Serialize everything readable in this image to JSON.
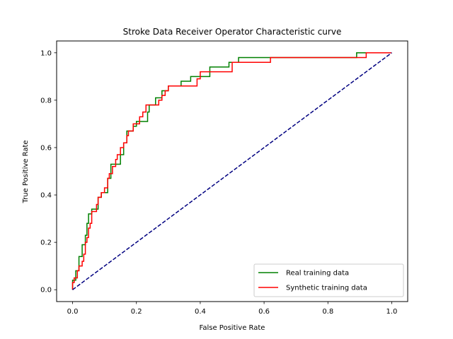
{
  "chart_data": {
    "type": "line",
    "title": "Stroke Data Receiver Operator Characteristic curve",
    "xlabel": "False Positive Rate",
    "ylabel": "True Positive Rate",
    "xlim": [
      -0.05,
      1.05
    ],
    "ylim": [
      -0.05,
      1.05
    ],
    "xticks": [
      "0.0",
      "0.2",
      "0.4",
      "0.6",
      "0.8",
      "1.0"
    ],
    "yticks": [
      "0.0",
      "0.2",
      "0.4",
      "0.6",
      "0.8",
      "1.0"
    ],
    "legend_position": "bottom-right",
    "grid": false,
    "series": [
      {
        "name": "Real training data",
        "color": "#008000",
        "style": "solid",
        "step": true,
        "points": [
          [
            0,
            0
          ],
          [
            0,
            0.04
          ],
          [
            0.01,
            0.04
          ],
          [
            0.01,
            0.08
          ],
          [
            0.02,
            0.08
          ],
          [
            0.02,
            0.14
          ],
          [
            0.03,
            0.14
          ],
          [
            0.03,
            0.19
          ],
          [
            0.04,
            0.19
          ],
          [
            0.04,
            0.23
          ],
          [
            0.045,
            0.23
          ],
          [
            0.045,
            0.28
          ],
          [
            0.05,
            0.28
          ],
          [
            0.05,
            0.32
          ],
          [
            0.06,
            0.32
          ],
          [
            0.06,
            0.34
          ],
          [
            0.08,
            0.34
          ],
          [
            0.08,
            0.39
          ],
          [
            0.09,
            0.39
          ],
          [
            0.09,
            0.41
          ],
          [
            0.11,
            0.41
          ],
          [
            0.11,
            0.47
          ],
          [
            0.12,
            0.47
          ],
          [
            0.12,
            0.53
          ],
          [
            0.15,
            0.53
          ],
          [
            0.15,
            0.57
          ],
          [
            0.16,
            0.57
          ],
          [
            0.16,
            0.62
          ],
          [
            0.17,
            0.62
          ],
          [
            0.17,
            0.67
          ],
          [
            0.19,
            0.67
          ],
          [
            0.19,
            0.69
          ],
          [
            0.2,
            0.69
          ],
          [
            0.2,
            0.71
          ],
          [
            0.235,
            0.71
          ],
          [
            0.235,
            0.75
          ],
          [
            0.24,
            0.75
          ],
          [
            0.24,
            0.78
          ],
          [
            0.26,
            0.78
          ],
          [
            0.26,
            0.81
          ],
          [
            0.28,
            0.81
          ],
          [
            0.28,
            0.84
          ],
          [
            0.3,
            0.84
          ],
          [
            0.3,
            0.86
          ],
          [
            0.34,
            0.86
          ],
          [
            0.34,
            0.88
          ],
          [
            0.37,
            0.88
          ],
          [
            0.37,
            0.9
          ],
          [
            0.43,
            0.9
          ],
          [
            0.43,
            0.94
          ],
          [
            0.49,
            0.94
          ],
          [
            0.49,
            0.96
          ],
          [
            0.52,
            0.96
          ],
          [
            0.52,
            0.98
          ],
          [
            0.89,
            0.98
          ],
          [
            0.89,
            1.0
          ],
          [
            1.0,
            1.0
          ]
        ]
      },
      {
        "name": "Synthetic training data",
        "color": "#ff0000",
        "style": "solid",
        "step": true,
        "points": [
          [
            0,
            0
          ],
          [
            0,
            0.03
          ],
          [
            0.005,
            0.03
          ],
          [
            0.005,
            0.05
          ],
          [
            0.015,
            0.05
          ],
          [
            0.015,
            0.08
          ],
          [
            0.02,
            0.08
          ],
          [
            0.02,
            0.1
          ],
          [
            0.03,
            0.1
          ],
          [
            0.03,
            0.12
          ],
          [
            0.035,
            0.12
          ],
          [
            0.035,
            0.15
          ],
          [
            0.04,
            0.15
          ],
          [
            0.04,
            0.2
          ],
          [
            0.045,
            0.2
          ],
          [
            0.045,
            0.22
          ],
          [
            0.05,
            0.22
          ],
          [
            0.05,
            0.26
          ],
          [
            0.055,
            0.26
          ],
          [
            0.055,
            0.28
          ],
          [
            0.06,
            0.28
          ],
          [
            0.06,
            0.33
          ],
          [
            0.075,
            0.33
          ],
          [
            0.075,
            0.36
          ],
          [
            0.08,
            0.36
          ],
          [
            0.08,
            0.39
          ],
          [
            0.09,
            0.39
          ],
          [
            0.09,
            0.41
          ],
          [
            0.1,
            0.41
          ],
          [
            0.1,
            0.43
          ],
          [
            0.11,
            0.43
          ],
          [
            0.11,
            0.47
          ],
          [
            0.115,
            0.47
          ],
          [
            0.115,
            0.49
          ],
          [
            0.125,
            0.49
          ],
          [
            0.125,
            0.52
          ],
          [
            0.135,
            0.52
          ],
          [
            0.135,
            0.55
          ],
          [
            0.14,
            0.55
          ],
          [
            0.14,
            0.57
          ],
          [
            0.15,
            0.57
          ],
          [
            0.15,
            0.6
          ],
          [
            0.16,
            0.6
          ],
          [
            0.16,
            0.62
          ],
          [
            0.17,
            0.62
          ],
          [
            0.17,
            0.65
          ],
          [
            0.175,
            0.65
          ],
          [
            0.175,
            0.67
          ],
          [
            0.19,
            0.67
          ],
          [
            0.19,
            0.7
          ],
          [
            0.21,
            0.7
          ],
          [
            0.21,
            0.73
          ],
          [
            0.22,
            0.73
          ],
          [
            0.22,
            0.75
          ],
          [
            0.23,
            0.75
          ],
          [
            0.23,
            0.78
          ],
          [
            0.27,
            0.78
          ],
          [
            0.27,
            0.8
          ],
          [
            0.28,
            0.8
          ],
          [
            0.28,
            0.82
          ],
          [
            0.29,
            0.82
          ],
          [
            0.29,
            0.84
          ],
          [
            0.3,
            0.84
          ],
          [
            0.3,
            0.86
          ],
          [
            0.39,
            0.86
          ],
          [
            0.39,
            0.89
          ],
          [
            0.4,
            0.89
          ],
          [
            0.4,
            0.92
          ],
          [
            0.5,
            0.92
          ],
          [
            0.5,
            0.96
          ],
          [
            0.62,
            0.96
          ],
          [
            0.62,
            0.98
          ],
          [
            0.92,
            0.98
          ],
          [
            0.92,
            1.0
          ],
          [
            1.0,
            1.0
          ]
        ]
      },
      {
        "name": "",
        "color": "#000080",
        "style": "dashed",
        "step": false,
        "in_legend": false,
        "points": [
          [
            0,
            0
          ],
          [
            1,
            1
          ]
        ]
      }
    ]
  }
}
